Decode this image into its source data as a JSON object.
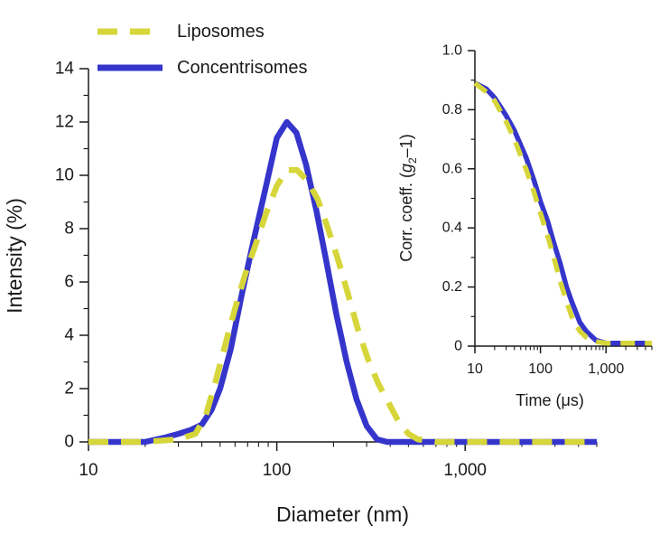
{
  "colors": {
    "liposomes": "#d6d63a",
    "concentrisomes": "#3535cc",
    "axis": "#1a1a1a"
  },
  "legend": {
    "position": "top-left",
    "entries": [
      {
        "label": "Liposomes",
        "style": "dashed",
        "color": "#d6d63a"
      },
      {
        "label": "Concentrisomes",
        "style": "solid",
        "color": "#3535cc"
      }
    ]
  },
  "chart_data": [
    {
      "type": "line",
      "role": "main",
      "xlabel": "Diameter (nm)",
      "ylabel": "Intensity (%)",
      "xscale": "log",
      "xlim": [
        10,
        5000
      ],
      "ylim": [
        0,
        14
      ],
      "xticks": [
        10,
        100,
        1000
      ],
      "xtick_labels": [
        "10",
        "100",
        "1,000"
      ],
      "yticks": [
        0,
        2,
        4,
        6,
        8,
        10,
        12,
        14
      ],
      "ytick_labels": [
        "0",
        "2",
        "4",
        "6",
        "8",
        "10",
        "12",
        "14"
      ],
      "grid": false,
      "series": [
        {
          "name": "Liposomes",
          "style": "dashed",
          "color": "#d6d63a",
          "x": [
            10,
            20,
            30,
            37,
            42,
            47,
            53,
            60,
            68,
            78,
            88,
            100,
            113,
            128,
            145,
            165,
            187,
            210,
            240,
            270,
            305,
            345,
            390,
            440,
            500,
            560,
            700,
            1000,
            2000,
            5000
          ],
          "y": [
            0,
            0,
            0.1,
            0.3,
            1.0,
            2.2,
            3.6,
            5.0,
            6.3,
            7.5,
            8.6,
            9.6,
            10.2,
            10.2,
            9.8,
            9.1,
            8.0,
            6.9,
            5.5,
            4.2,
            3.1,
            2.2,
            1.5,
            0.8,
            0.3,
            0.1,
            0,
            0,
            0,
            0
          ]
        },
        {
          "name": "Concentrisomes",
          "style": "solid",
          "color": "#3535cc",
          "x": [
            10,
            20,
            25,
            30,
            35,
            40,
            45,
            50,
            57,
            65,
            75,
            87,
            100,
            113,
            127,
            143,
            162,
            183,
            207,
            235,
            265,
            300,
            340,
            385,
            440,
            500,
            700,
            1000,
            2000,
            5000
          ],
          "y": [
            0,
            0,
            0.15,
            0.3,
            0.45,
            0.65,
            1.2,
            2.0,
            3.5,
            5.5,
            7.5,
            9.5,
            11.4,
            12.0,
            11.6,
            10.4,
            8.7,
            6.8,
            4.8,
            3.0,
            1.6,
            0.6,
            0.1,
            0,
            0,
            0,
            0,
            0,
            0,
            0
          ]
        }
      ]
    },
    {
      "type": "line",
      "role": "inset",
      "xlabel": "Time (μs)",
      "ylabel_parts": {
        "main": "Corr. coeff. (",
        "italic": "g",
        "sub": "2",
        "rest": "–1)"
      },
      "xscale": "log",
      "xlim": [
        10,
        5000
      ],
      "ylim": [
        0,
        1.0
      ],
      "xticks": [
        10,
        100,
        1000
      ],
      "xtick_labels": [
        "10",
        "100",
        "1,000"
      ],
      "yticks": [
        0,
        0.2,
        0.4,
        0.6,
        0.8,
        1.0
      ],
      "ytick_labels": [
        "0",
        "0.2",
        "0.4",
        "0.6",
        "0.8",
        "1.0"
      ],
      "grid": false,
      "series": [
        {
          "name": "Liposomes",
          "style": "dashed",
          "color": "#d6d63a",
          "x": [
            10,
            15,
            20,
            30,
            40,
            60,
            80,
            100,
            130,
            160,
            200,
            250,
            300,
            400,
            500,
            700,
            1000,
            2000,
            5000
          ],
          "y": [
            0.89,
            0.86,
            0.83,
            0.76,
            0.7,
            0.6,
            0.52,
            0.45,
            0.37,
            0.3,
            0.22,
            0.15,
            0.1,
            0.05,
            0.03,
            0.015,
            0.01,
            0.01,
            0.01
          ]
        },
        {
          "name": "Concentrisomes",
          "style": "solid",
          "color": "#3535cc",
          "x": [
            10,
            15,
            20,
            30,
            40,
            60,
            80,
            100,
            130,
            160,
            200,
            250,
            300,
            400,
            500,
            700,
            1000,
            2000,
            5000
          ],
          "y": [
            0.89,
            0.87,
            0.84,
            0.78,
            0.73,
            0.64,
            0.56,
            0.49,
            0.42,
            0.35,
            0.28,
            0.2,
            0.15,
            0.08,
            0.05,
            0.02,
            0.01,
            0.01,
            0.01
          ]
        }
      ]
    }
  ]
}
